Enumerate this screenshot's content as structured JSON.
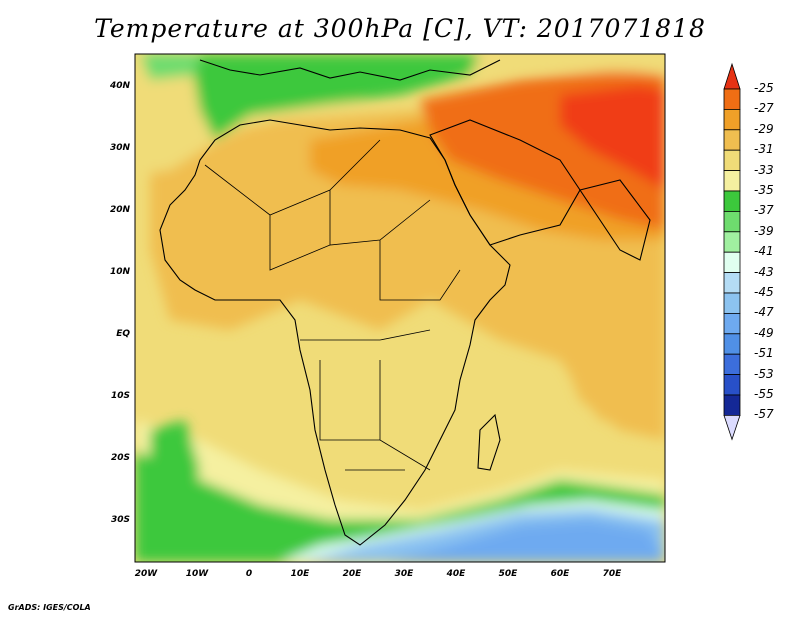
{
  "title": "Temperature at 300hPa [C], VT: 2017071818",
  "credit": "GrADS: IGES/COLA",
  "map": {
    "lat_labels": [
      "40N",
      "30N",
      "20N",
      "10N",
      "EQ",
      "10S",
      "20S",
      "30S"
    ],
    "lon_labels": [
      "20W",
      "10W",
      "0",
      "10E",
      "20E",
      "30E",
      "40E",
      "50E",
      "60E",
      "70E"
    ]
  },
  "colorbar": {
    "levels": [
      "-25",
      "-27",
      "-29",
      "-31",
      "-33",
      "-35",
      "-37",
      "-39",
      "-41",
      "-43",
      "-45",
      "-47",
      "-49",
      "-51",
      "-53",
      "-55",
      "-57"
    ],
    "colors": [
      "#f03c14",
      "#f06e14",
      "#f0a028",
      "#f0be50",
      "#f0dc78",
      "#f5f0a0",
      "#3cc83c",
      "#6edc6e",
      "#a0f0a0",
      "#e0fff0",
      "#b4dcf5",
      "#8cc3f0",
      "#6eaaf0",
      "#5090e6",
      "#3c6edc",
      "#2850c8",
      "#142896",
      "#14146e"
    ],
    "top_arrow_color": "#e63214",
    "bottom_arrow_color": "#dcdcff"
  }
}
